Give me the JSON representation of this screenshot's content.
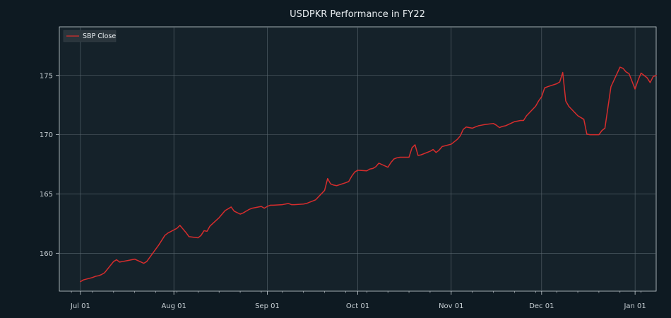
{
  "chart_data": {
    "type": "line",
    "title": "USDPKR Performance in FY22",
    "xlabel": "",
    "ylabel": "",
    "x_range": [
      "2021-06-24",
      "2022-01-08"
    ],
    "ylim": [
      156.8,
      179.1
    ],
    "x_ticks": [
      {
        "date": "2021-07-01",
        "label": "Jul 01"
      },
      {
        "date": "2021-08-01",
        "label": "Aug 01"
      },
      {
        "date": "2021-09-01",
        "label": "Sep 01"
      },
      {
        "date": "2021-10-01",
        "label": "Oct 01"
      },
      {
        "date": "2021-11-01",
        "label": "Nov 01"
      },
      {
        "date": "2021-12-01",
        "label": "Dec 01"
      },
      {
        "date": "2022-01-01",
        "label": "Jan 01"
      }
    ],
    "y_ticks": [
      160,
      165,
      170,
      175
    ],
    "grid": true,
    "legend_position": "top-left",
    "colors": {
      "background": "#0e1a22",
      "plot_background": "#15222a",
      "grid": "#5b6870",
      "axes": "#c9d1d6",
      "series": "#d62d2d"
    },
    "series": [
      {
        "name": "SBP Close",
        "points": [
          [
            "2021-07-01",
            157.6
          ],
          [
            "2021-07-02",
            157.75
          ],
          [
            "2021-07-05",
            157.95
          ],
          [
            "2021-07-06",
            158.05
          ],
          [
            "2021-07-07",
            158.1
          ],
          [
            "2021-07-08",
            158.2
          ],
          [
            "2021-07-09",
            158.35
          ],
          [
            "2021-07-12",
            159.3
          ],
          [
            "2021-07-13",
            159.45
          ],
          [
            "2021-07-14",
            159.25
          ],
          [
            "2021-07-15",
            159.3
          ],
          [
            "2021-07-16",
            159.35
          ],
          [
            "2021-07-19",
            159.5
          ],
          [
            "2021-07-22",
            159.15
          ],
          [
            "2021-07-23",
            159.3
          ],
          [
            "2021-07-26",
            160.35
          ],
          [
            "2021-07-27",
            160.7
          ],
          [
            "2021-07-28",
            161.1
          ],
          [
            "2021-07-29",
            161.5
          ],
          [
            "2021-07-30",
            161.7
          ],
          [
            "2021-08-02",
            162.1
          ],
          [
            "2021-08-03",
            162.35
          ],
          [
            "2021-08-04",
            162.05
          ],
          [
            "2021-08-05",
            161.75
          ],
          [
            "2021-08-06",
            161.4
          ],
          [
            "2021-08-09",
            161.3
          ],
          [
            "2021-08-10",
            161.5
          ],
          [
            "2021-08-11",
            161.9
          ],
          [
            "2021-08-12",
            161.85
          ],
          [
            "2021-08-13",
            162.3
          ],
          [
            "2021-08-16",
            163.0
          ],
          [
            "2021-08-17",
            163.3
          ],
          [
            "2021-08-18",
            163.6
          ],
          [
            "2021-08-20",
            163.9
          ],
          [
            "2021-08-21",
            163.55
          ],
          [
            "2021-08-23",
            163.3
          ],
          [
            "2021-08-24",
            163.4
          ],
          [
            "2021-08-25",
            163.55
          ],
          [
            "2021-08-26",
            163.7
          ],
          [
            "2021-08-27",
            163.8
          ],
          [
            "2021-08-30",
            163.95
          ],
          [
            "2021-08-31",
            163.8
          ],
          [
            "2021-09-01",
            163.95
          ],
          [
            "2021-09-02",
            164.05
          ],
          [
            "2021-09-03",
            164.05
          ],
          [
            "2021-09-06",
            164.1
          ],
          [
            "2021-09-07",
            164.15
          ],
          [
            "2021-09-08",
            164.2
          ],
          [
            "2021-09-09",
            164.1
          ],
          [
            "2021-09-10",
            164.1
          ],
          [
            "2021-09-13",
            164.15
          ],
          [
            "2021-09-14",
            164.2
          ],
          [
            "2021-09-15",
            164.3
          ],
          [
            "2021-09-16",
            164.4
          ],
          [
            "2021-09-17",
            164.5
          ],
          [
            "2021-09-20",
            165.3
          ],
          [
            "2021-09-21",
            166.3
          ],
          [
            "2021-09-22",
            165.85
          ],
          [
            "2021-09-23",
            165.75
          ],
          [
            "2021-09-24",
            165.7
          ],
          [
            "2021-09-27",
            165.95
          ],
          [
            "2021-09-28",
            166.05
          ],
          [
            "2021-09-29",
            166.5
          ],
          [
            "2021-09-30",
            166.85
          ],
          [
            "2021-10-01",
            167.0
          ],
          [
            "2021-10-04",
            166.95
          ],
          [
            "2021-10-05",
            167.1
          ],
          [
            "2021-10-06",
            167.15
          ],
          [
            "2021-10-07",
            167.3
          ],
          [
            "2021-10-08",
            167.6
          ],
          [
            "2021-10-11",
            167.25
          ],
          [
            "2021-10-12",
            167.65
          ],
          [
            "2021-10-13",
            167.95
          ],
          [
            "2021-10-14",
            168.05
          ],
          [
            "2021-10-15",
            168.1
          ],
          [
            "2021-10-18",
            168.1
          ],
          [
            "2021-10-19",
            168.9
          ],
          [
            "2021-10-20",
            169.15
          ],
          [
            "2021-10-21",
            168.25
          ],
          [
            "2021-10-22",
            168.3
          ],
          [
            "2021-10-25",
            168.6
          ],
          [
            "2021-10-26",
            168.75
          ],
          [
            "2021-10-27",
            168.5
          ],
          [
            "2021-10-28",
            168.7
          ],
          [
            "2021-10-29",
            169.0
          ],
          [
            "2021-11-01",
            169.2
          ],
          [
            "2021-11-02",
            169.4
          ],
          [
            "2021-11-03",
            169.6
          ],
          [
            "2021-11-04",
            169.9
          ],
          [
            "2021-11-05",
            170.45
          ],
          [
            "2021-11-06",
            170.65
          ],
          [
            "2021-11-08",
            170.55
          ],
          [
            "2021-11-09",
            170.65
          ],
          [
            "2021-11-10",
            170.75
          ],
          [
            "2021-11-11",
            170.8
          ],
          [
            "2021-11-12",
            170.85
          ],
          [
            "2021-11-15",
            170.95
          ],
          [
            "2021-11-16",
            170.8
          ],
          [
            "2021-11-17",
            170.6
          ],
          [
            "2021-11-18",
            170.7
          ],
          [
            "2021-11-19",
            170.75
          ],
          [
            "2021-11-22",
            171.1
          ],
          [
            "2021-11-23",
            171.15
          ],
          [
            "2021-11-24",
            171.2
          ],
          [
            "2021-11-25",
            171.2
          ],
          [
            "2021-11-26",
            171.6
          ],
          [
            "2021-11-29",
            172.4
          ],
          [
            "2021-11-30",
            172.85
          ],
          [
            "2021-12-01",
            173.2
          ],
          [
            "2021-12-02",
            173.95
          ],
          [
            "2021-12-03",
            174.05
          ],
          [
            "2021-12-06",
            174.3
          ],
          [
            "2021-12-07",
            174.45
          ],
          [
            "2021-12-08",
            175.25
          ],
          [
            "2021-12-09",
            172.85
          ],
          [
            "2021-12-10",
            172.4
          ],
          [
            "2021-12-13",
            171.6
          ],
          [
            "2021-12-14",
            171.45
          ],
          [
            "2021-12-15",
            171.3
          ],
          [
            "2021-12-16",
            170.05
          ],
          [
            "2021-12-17",
            170.0
          ],
          [
            "2021-12-20",
            170.0
          ],
          [
            "2021-12-21",
            170.35
          ],
          [
            "2021-12-22",
            170.55
          ],
          [
            "2021-12-23",
            172.3
          ],
          [
            "2021-12-24",
            174.05
          ],
          [
            "2021-12-27",
            175.7
          ],
          [
            "2021-12-28",
            175.6
          ],
          [
            "2021-12-29",
            175.3
          ],
          [
            "2021-12-30",
            175.15
          ],
          [
            "2021-12-31",
            174.5
          ],
          [
            "2022-01-01",
            173.85
          ],
          [
            "2022-01-02",
            174.6
          ],
          [
            "2022-01-03",
            175.2
          ],
          [
            "2022-01-04",
            175.0
          ],
          [
            "2022-01-05",
            174.8
          ],
          [
            "2022-01-06",
            174.4
          ],
          [
            "2022-01-07",
            174.9
          ],
          [
            "2022-01-08",
            175.0
          ]
        ]
      }
    ]
  }
}
